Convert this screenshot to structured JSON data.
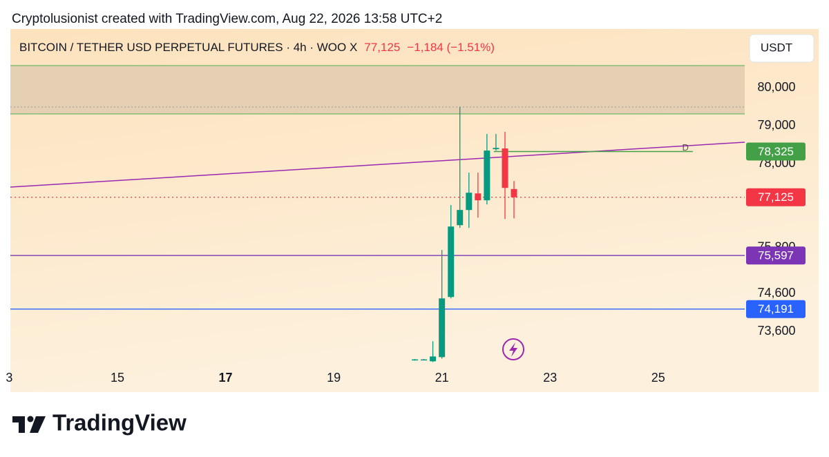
{
  "header": "Cryptolusionist created with TradingView.com, Aug 22, 2026 13:58 UTC+2",
  "brand": "TradingView",
  "currency": "USDT",
  "chart_data": {
    "type": "candlestick",
    "symbol": "BITCOIN / TETHER USD PERPETUAL FUTURES · 4h · WOO X",
    "last_price": "77,125",
    "change": "−1,184 (−1.51%)",
    "up_color": "#089981",
    "down_color": "#f23645",
    "x": [
      20.5,
      20.667,
      20.833,
      21.0,
      21.167,
      21.333,
      21.5,
      21.667,
      21.833,
      22.0,
      22.167,
      22.333
    ],
    "open": [
      72860,
      72860,
      72820,
      72930,
      74507,
      76392,
      76790,
      77226,
      77045,
      78386,
      78405,
      77340
    ],
    "high": [
      72880,
      72880,
      73346,
      75740,
      76920,
      79492,
      77770,
      77770,
      78785,
      78785,
      78840,
      77550
    ],
    "low": [
      72840,
      72850,
      72800,
      72890,
      74470,
      76320,
      76320,
      76590,
      76936,
      78350,
      76555,
      76570
    ],
    "close": [
      72870,
      72870,
      72947,
      74470,
      76356,
      76791,
      77244,
      77045,
      78350,
      78420,
      77370,
      77125
    ],
    "xlim": [
      13.02,
      26.6
    ],
    "xticks": [
      {
        "value": 13,
        "label": "3"
      },
      15,
      17,
      19,
      21,
      23,
      25
    ],
    "ylim": [
      72700,
      81540
    ],
    "yticks": [
      {
        "value": 80000,
        "label": "80,000"
      },
      {
        "value": 79000,
        "label": "79,000"
      },
      {
        "value": 78000,
        "label": "78,000"
      },
      {
        "value": 75800,
        "label": "75,800"
      },
      {
        "value": 74600,
        "label": "74,600"
      },
      {
        "value": 73600,
        "label": "73,600"
      }
    ],
    "levels": [
      {
        "value": 78325,
        "label": "78,325",
        "color": "#43a047",
        "style": "segment",
        "from": 21.96,
        "to": 25.64,
        "tag": "D"
      },
      {
        "value": 77125,
        "label": "77,125",
        "color": "#f23645",
        "style": "dotted"
      },
      {
        "value": 75597,
        "label": "75,597",
        "color": "#7b35b5",
        "style": "solid"
      },
      {
        "value": 74191,
        "label": "74,191",
        "color": "#2962ff",
        "style": "solid"
      }
    ]
  }
}
